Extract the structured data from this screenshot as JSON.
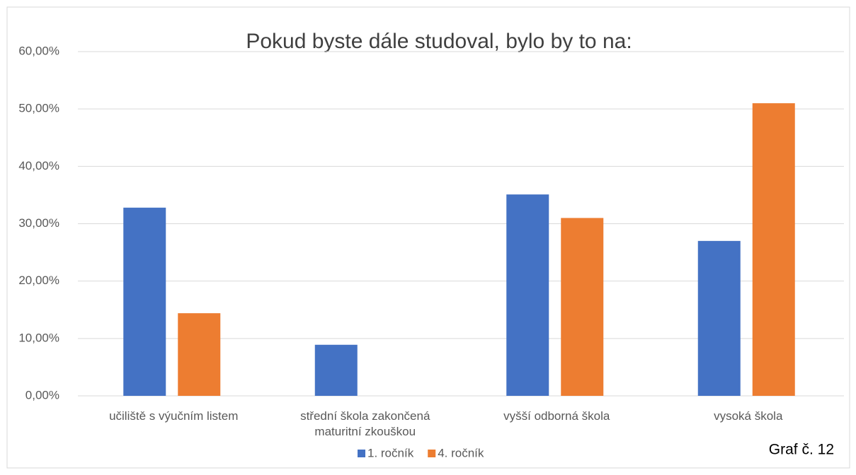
{
  "chart_data": {
    "type": "bar",
    "title": "Pokud byste dále studoval, bylo by to na:",
    "annotation": "Graf č. 12",
    "categories": [
      "učiliště s výučním listem",
      "střední škola zakončená maturitní zkouškou",
      "vyšší odborná škola",
      "vysoká škola"
    ],
    "series": [
      {
        "name": "1. ročník",
        "color": "#4472c4",
        "values": [
          32.8,
          8.9,
          35.1,
          27.0
        ]
      },
      {
        "name": "4. ročník",
        "color": "#ed7d31",
        "values": [
          14.4,
          0,
          31.0,
          51.0
        ]
      }
    ],
    "ylim": [
      0,
      60
    ],
    "yticks": [
      {
        "value": 0,
        "label": "0,00%"
      },
      {
        "value": 10,
        "label": "10,00%"
      },
      {
        "value": 20,
        "label": "20,00%"
      },
      {
        "value": 30,
        "label": "30,00%"
      },
      {
        "value": 40,
        "label": "40,00%"
      },
      {
        "value": 50,
        "label": "50,00%"
      },
      {
        "value": 60,
        "label": "60,00%"
      }
    ],
    "grid": true,
    "legend": "bottom"
  }
}
